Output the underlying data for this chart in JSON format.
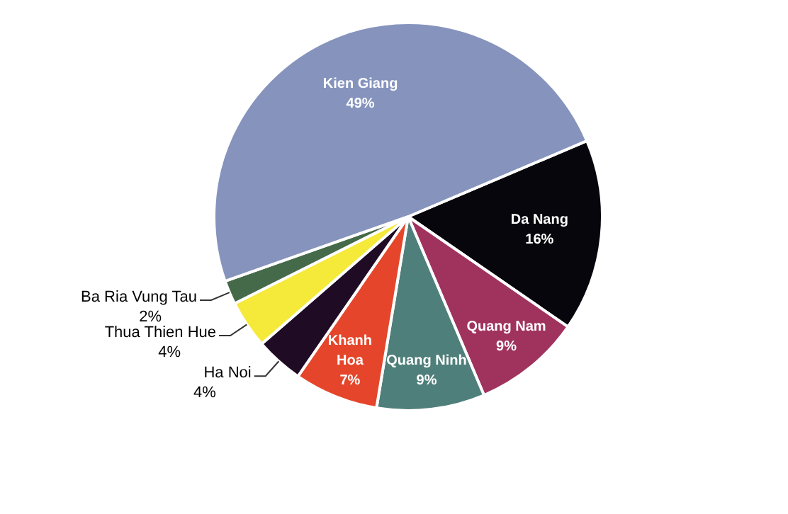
{
  "chart_data": {
    "type": "pie",
    "categories": [
      "Da Nang",
      "Quang Nam",
      "Quang Ninh",
      "Khanh Hoa",
      "Ha Noi",
      "Thua Thien Hue",
      "Ba Ria Vung Tau",
      "Kien Giang"
    ],
    "values": [
      16,
      9,
      9,
      7,
      4,
      4,
      2,
      49
    ],
    "colors": [
      "#07060c",
      "#a0335e",
      "#4f7f7a",
      "#e5462b",
      "#1f0c24",
      "#f5e93a",
      "#456a4a",
      "#8593bd"
    ],
    "value_labels": [
      "16%",
      "9%",
      "9%",
      "7%",
      "4%",
      "4%",
      "2%",
      "49%"
    ],
    "legend": false
  }
}
